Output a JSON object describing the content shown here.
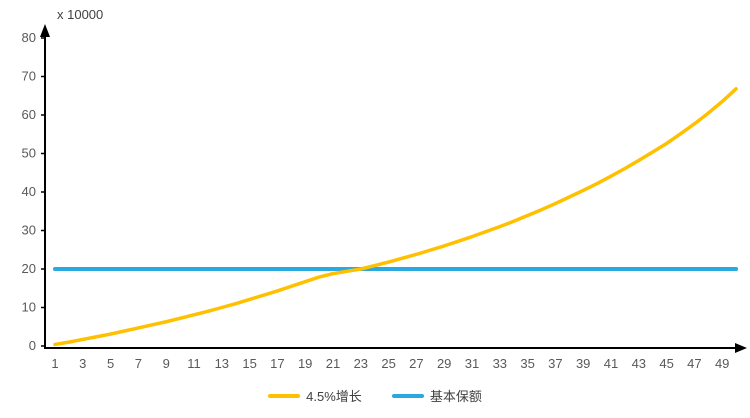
{
  "chart_data": {
    "type": "line",
    "title": "",
    "xlabel": "",
    "ylabel": "x 10000",
    "xlim": [
      1,
      50
    ],
    "ylim": [
      0,
      80
    ],
    "grid": false,
    "legend_position": "bottom",
    "x": [
      1,
      2,
      3,
      4,
      5,
      6,
      7,
      8,
      9,
      10,
      11,
      12,
      13,
      14,
      15,
      16,
      17,
      18,
      19,
      20,
      21,
      22,
      23,
      24,
      25,
      26,
      27,
      28,
      29,
      30,
      31,
      32,
      33,
      34,
      35,
      36,
      37,
      38,
      39,
      40,
      41,
      42,
      43,
      44,
      45,
      46,
      47,
      48,
      49,
      50
    ],
    "x_tick_labels": [
      "1",
      "3",
      "5",
      "7",
      "9",
      "11",
      "13",
      "15",
      "17",
      "19",
      "21",
      "23",
      "25",
      "27",
      "29",
      "31",
      "33",
      "35",
      "37",
      "39",
      "41",
      "43",
      "45",
      "47",
      "49"
    ],
    "y_ticks": [
      0,
      10,
      20,
      30,
      40,
      50,
      60,
      70,
      80
    ],
    "series": [
      {
        "name": "4.5%增长",
        "color": "#FFC000",
        "stroke_width": 3.5,
        "values": [
          0.4,
          1.0,
          1.7,
          2.4,
          3.1,
          3.9,
          4.7,
          5.5,
          6.3,
          7.2,
          8.1,
          9.0,
          10.0,
          11.0,
          12.1,
          13.2,
          14.3,
          15.5,
          16.7,
          17.9,
          18.8,
          19.4,
          20.0,
          20.9,
          21.8,
          22.8,
          23.8,
          24.9,
          26.0,
          27.2,
          28.4,
          29.7,
          31.0,
          32.4,
          33.9,
          35.4,
          37.0,
          38.7,
          40.4,
          42.2,
          44.1,
          46.1,
          48.2,
          50.4,
          52.6,
          55.1,
          57.7,
          60.5,
          63.5,
          66.8
        ]
      },
      {
        "name": "基本保额",
        "color": "#29A9E0",
        "stroke_width": 4,
        "values": [
          20,
          20,
          20,
          20,
          20,
          20,
          20,
          20,
          20,
          20,
          20,
          20,
          20,
          20,
          20,
          20,
          20,
          20,
          20,
          20,
          20,
          20,
          20,
          20,
          20,
          20,
          20,
          20,
          20,
          20,
          20,
          20,
          20,
          20,
          20,
          20,
          20,
          20,
          20,
          20,
          20,
          20,
          20,
          20,
          20,
          20,
          20,
          20,
          20,
          20
        ]
      }
    ]
  }
}
